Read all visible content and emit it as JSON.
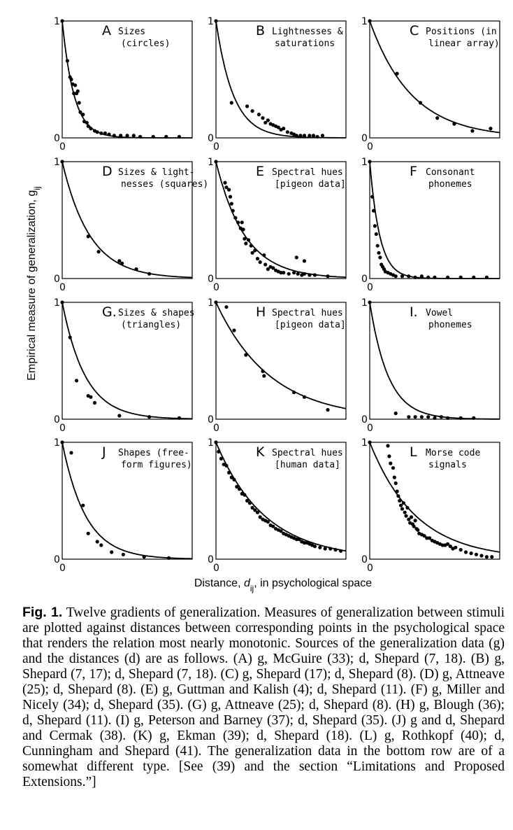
{
  "y_axis_title": "Empirical measure of generalization, g",
  "y_axis_sub": "ij",
  "x_axis_title_prefix": "Distance, ",
  "x_axis_var": "d",
  "x_axis_sub": "ij",
  "x_axis_title_suffix": ", in psychological space",
  "caption": {
    "fig_label": "Fig. 1.",
    "text": "Twelve gradients of generalization. Measures of generalization between stimuli are plotted against distances between corresponding points in the psychological space that renders the relation most nearly monotonic. Sources of the generalization data (g) and the distances (d) are as follows. (A) g, McGuire (33); d, Shepard (7, 18). (B) g, Shepard (7, 17); d, Shepard (7, 18). (C) g, Shepard (17); d, Shepard (8). (D) g, Attneave (25); d, Shepard (8). (E) g, Guttman and Kalish (4); d, Shepard (11). (F) g, Miller and Nicely (34); d, Shepard (35). (G) g, Attneave (25); d, Shepard (8). (H) g, Blough (36); d, Shepard (11). (I) g, Peterson and Barney (37); d, Shepard (35). (J) g and d, Shepard and Cermak (38). (K) g, Ekman (39); d, Shepard (18). (L) g, Rothkopf (40); d, Cunningham and Shepard (41). The generalization data in the bottom row are of a somewhat different type. [See (39) and the section “Limitations and Proposed Extensions.”]"
  },
  "chart_data": [
    {
      "id": "A",
      "type": "scatter",
      "letter": "A",
      "label": [
        "Sizes",
        "(circles)"
      ],
      "tick_y_top": "1",
      "tick_y_bottom": "0",
      "tick_x": "0",
      "ylim": [
        0,
        1
      ],
      "xlim": [
        0,
        1
      ],
      "curve_k": 11,
      "points": [
        [
          0.04,
          0.66
        ],
        [
          0.06,
          0.52
        ],
        [
          0.07,
          0.5
        ],
        [
          0.08,
          0.46
        ],
        [
          0.09,
          0.38
        ],
        [
          0.1,
          0.45
        ],
        [
          0.11,
          0.38
        ],
        [
          0.12,
          0.4
        ],
        [
          0.13,
          0.3
        ],
        [
          0.14,
          0.22
        ],
        [
          0.16,
          0.2
        ],
        [
          0.17,
          0.14
        ],
        [
          0.19,
          0.13
        ],
        [
          0.2,
          0.1
        ],
        [
          0.22,
          0.08
        ],
        [
          0.25,
          0.06
        ],
        [
          0.27,
          0.05
        ],
        [
          0.3,
          0.04
        ],
        [
          0.33,
          0.04
        ],
        [
          0.36,
          0.03
        ],
        [
          0.4,
          0.02
        ],
        [
          0.45,
          0.02
        ],
        [
          0.5,
          0.02
        ],
        [
          0.55,
          0.02
        ],
        [
          0.6,
          0.01
        ],
        [
          0.7,
          0.01
        ],
        [
          0.8,
          0.01
        ],
        [
          0.9,
          0.01
        ]
      ]
    },
    {
      "id": "B",
      "type": "scatter",
      "letter": "B",
      "label": [
        "Lightnesses &",
        "saturations"
      ],
      "tick_y_top": "1",
      "tick_y_bottom": "0",
      "tick_x": "0",
      "ylim": [
        0,
        1
      ],
      "xlim": [
        0,
        1
      ],
      "curve_k": 7.5,
      "points": [
        [
          0.12,
          0.3
        ],
        [
          0.24,
          0.27
        ],
        [
          0.28,
          0.23
        ],
        [
          0.33,
          0.2
        ],
        [
          0.36,
          0.17
        ],
        [
          0.38,
          0.13
        ],
        [
          0.4,
          0.15
        ],
        [
          0.42,
          0.12
        ],
        [
          0.44,
          0.11
        ],
        [
          0.46,
          0.1
        ],
        [
          0.48,
          0.09
        ],
        [
          0.5,
          0.07
        ],
        [
          0.52,
          0.08
        ],
        [
          0.55,
          0.05
        ],
        [
          0.58,
          0.04
        ],
        [
          0.6,
          0.03
        ],
        [
          0.62,
          0.02
        ],
        [
          0.65,
          0.02
        ],
        [
          0.68,
          0.02
        ],
        [
          0.72,
          0.02
        ],
        [
          0.75,
          0.02
        ],
        [
          0.78,
          0.01
        ],
        [
          0.82,
          0.02
        ]
      ]
    },
    {
      "id": "C",
      "type": "scatter",
      "letter": "C",
      "label": [
        "Positions (in",
        "linear array)"
      ],
      "tick_y_top": "1",
      "tick_y_bottom": "0",
      "tick_x": "0",
      "ylim": [
        0,
        1
      ],
      "xlim": [
        0,
        1
      ],
      "curve_k": 3.1,
      "points": [
        [
          0.21,
          0.55
        ],
        [
          0.39,
          0.3
        ],
        [
          0.52,
          0.17
        ],
        [
          0.65,
          0.12
        ],
        [
          0.79,
          0.06
        ],
        [
          0.93,
          0.08
        ]
      ]
    },
    {
      "id": "D",
      "type": "scatter",
      "letter": "D",
      "label": [
        "Sizes & light-",
        "nesses (squares)"
      ],
      "tick_y_top": "1",
      "tick_y_bottom": "0",
      "tick_x": "0",
      "ylim": [
        0,
        1
      ],
      "xlim": [
        0,
        1
      ],
      "curve_k": 4.7,
      "points": [
        [
          0.2,
          0.36
        ],
        [
          0.28,
          0.23
        ],
        [
          0.44,
          0.15
        ],
        [
          0.46,
          0.13
        ],
        [
          0.57,
          0.08
        ],
        [
          0.67,
          0.04
        ]
      ]
    },
    {
      "id": "E",
      "type": "scatter",
      "letter": "E",
      "label": [
        "Spectral hues",
        "[pigeon data]"
      ],
      "tick_y_top": "1",
      "tick_y_bottom": "0",
      "tick_x": "0",
      "ylim": [
        0,
        1
      ],
      "xlim": [
        0,
        1
      ],
      "curve_k": 4.5,
      "points": [
        [
          0.07,
          0.82
        ],
        [
          0.08,
          0.78
        ],
        [
          0.1,
          0.76
        ],
        [
          0.11,
          0.7
        ],
        [
          0.12,
          0.64
        ],
        [
          0.13,
          0.58
        ],
        [
          0.15,
          0.52
        ],
        [
          0.17,
          0.48
        ],
        [
          0.19,
          0.43
        ],
        [
          0.2,
          0.48
        ],
        [
          0.21,
          0.42
        ],
        [
          0.22,
          0.34
        ],
        [
          0.23,
          0.3
        ],
        [
          0.25,
          0.33
        ],
        [
          0.27,
          0.28
        ],
        [
          0.28,
          0.22
        ],
        [
          0.3,
          0.24
        ],
        [
          0.32,
          0.17
        ],
        [
          0.34,
          0.14
        ],
        [
          0.37,
          0.2
        ],
        [
          0.38,
          0.12
        ],
        [
          0.4,
          0.08
        ],
        [
          0.42,
          0.1
        ],
        [
          0.44,
          0.09
        ],
        [
          0.46,
          0.07
        ],
        [
          0.48,
          0.06
        ],
        [
          0.5,
          0.05
        ],
        [
          0.52,
          0.05
        ],
        [
          0.56,
          0.04
        ],
        [
          0.6,
          0.05
        ],
        [
          0.63,
          0.04
        ],
        [
          0.66,
          0.03
        ],
        [
          0.68,
          0.04
        ],
        [
          0.72,
          0.03
        ],
        [
          0.76,
          0.03
        ],
        [
          0.62,
          0.18
        ],
        [
          0.68,
          0.15
        ],
        [
          0.86,
          0.02
        ]
      ]
    },
    {
      "id": "F",
      "type": "scatter",
      "letter": "F",
      "label": [
        "Consonant",
        "phonemes"
      ],
      "tick_y_top": "1",
      "tick_y_bottom": "0",
      "tick_x": "0",
      "ylim": [
        0,
        1
      ],
      "xlim": [
        0,
        1
      ],
      "curve_k": 13,
      "points": [
        [
          0.02,
          0.7
        ],
        [
          0.03,
          0.58
        ],
        [
          0.04,
          0.45
        ],
        [
          0.05,
          0.38
        ],
        [
          0.06,
          0.28
        ],
        [
          0.07,
          0.22
        ],
        [
          0.08,
          0.18
        ],
        [
          0.09,
          0.12
        ],
        [
          0.1,
          0.1
        ],
        [
          0.11,
          0.08
        ],
        [
          0.12,
          0.06
        ],
        [
          0.14,
          0.05
        ],
        [
          0.16,
          0.04
        ],
        [
          0.18,
          0.03
        ],
        [
          0.2,
          0.02
        ],
        [
          0.25,
          0.02
        ],
        [
          0.3,
          0.02
        ],
        [
          0.35,
          0.01
        ],
        [
          0.4,
          0.02
        ],
        [
          0.45,
          0.01
        ],
        [
          0.5,
          0.01
        ],
        [
          0.6,
          0.01
        ],
        [
          0.7,
          0.01
        ],
        [
          0.8,
          0.01
        ],
        [
          0.9,
          0.01
        ]
      ]
    },
    {
      "id": "G",
      "type": "scatter",
      "letter": "G.",
      "label": [
        "Sizes & shapes",
        "(triangles)"
      ],
      "tick_y_top": "1",
      "tick_y_bottom": "0",
      "tick_x": "0",
      "ylim": [
        0,
        1
      ],
      "xlim": [
        0,
        1
      ],
      "curve_k": 5.6,
      "points": [
        [
          0.06,
          0.7
        ],
        [
          0.11,
          0.33
        ],
        [
          0.2,
          0.2
        ],
        [
          0.22,
          0.19
        ],
        [
          0.25,
          0.14
        ],
        [
          0.44,
          0.03
        ],
        [
          0.67,
          0.02
        ],
        [
          0.9,
          0.01
        ]
      ]
    },
    {
      "id": "H",
      "type": "scatter",
      "letter": "H",
      "label": [
        "Spectral hues",
        "[pigeon data]"
      ],
      "tick_y_top": "1",
      "tick_y_bottom": "0",
      "tick_x": "0",
      "ylim": [
        0,
        1
      ],
      "xlim": [
        0,
        1
      ],
      "curve_k": 2.4,
      "points": [
        [
          0.08,
          0.96
        ],
        [
          0.14,
          0.76
        ],
        [
          0.23,
          0.55
        ],
        [
          0.36,
          0.41
        ],
        [
          0.37,
          0.37
        ],
        [
          0.6,
          0.23
        ],
        [
          0.68,
          0.19
        ],
        [
          0.86,
          0.08
        ]
      ]
    },
    {
      "id": "I",
      "type": "scatter",
      "letter": "I.",
      "label": [
        "Vowel",
        "phonemes"
      ],
      "tick_y_top": "1",
      "tick_y_bottom": "0",
      "tick_x": "0",
      "ylim": [
        0,
        1
      ],
      "xlim": [
        0,
        1
      ],
      "curve_k": 7,
      "points": [
        [
          0.2,
          0.05
        ],
        [
          0.3,
          0.02
        ],
        [
          0.35,
          0.02
        ],
        [
          0.4,
          0.02
        ],
        [
          0.45,
          0.02
        ],
        [
          0.5,
          0.01
        ],
        [
          0.55,
          0.02
        ],
        [
          0.6,
          0.01
        ],
        [
          0.7,
          0.01
        ],
        [
          0.8,
          0.01
        ]
      ]
    },
    {
      "id": "J",
      "type": "scatter",
      "letter": "J",
      "label": [
        "Shapes (free-",
        "form figures)"
      ],
      "tick_y_top": "1",
      "tick_y_bottom": "0",
      "tick_x": "0",
      "ylim": [
        0,
        1
      ],
      "xlim": [
        0,
        1
      ],
      "curve_k": 5.5,
      "points": [
        [
          0.07,
          0.91
        ],
        [
          0.16,
          0.46
        ],
        [
          0.2,
          0.22
        ],
        [
          0.27,
          0.15
        ],
        [
          0.3,
          0.12
        ],
        [
          0.38,
          0.06
        ],
        [
          0.47,
          0.04
        ],
        [
          0.63,
          0.02
        ],
        [
          0.82,
          0.01
        ]
      ]
    },
    {
      "id": "K",
      "type": "scatter",
      "letter": "K",
      "label": [
        "Spectral hues",
        "[human data]"
      ],
      "tick_y_top": "1",
      "tick_y_bottom": "0",
      "tick_x": "0",
      "ylim": [
        0,
        1
      ],
      "xlim": [
        0,
        1
      ],
      "curve_k": 2.65,
      "points": [
        [
          0.02,
          0.92
        ],
        [
          0.04,
          0.86
        ],
        [
          0.06,
          0.81
        ],
        [
          0.08,
          0.8
        ],
        [
          0.1,
          0.74
        ],
        [
          0.12,
          0.7
        ],
        [
          0.14,
          0.68
        ],
        [
          0.16,
          0.62
        ],
        [
          0.18,
          0.6
        ],
        [
          0.2,
          0.56
        ],
        [
          0.22,
          0.55
        ],
        [
          0.24,
          0.5
        ],
        [
          0.26,
          0.48
        ],
        [
          0.28,
          0.44
        ],
        [
          0.3,
          0.42
        ],
        [
          0.32,
          0.4
        ],
        [
          0.34,
          0.36
        ],
        [
          0.36,
          0.34
        ],
        [
          0.38,
          0.33
        ],
        [
          0.4,
          0.32
        ],
        [
          0.42,
          0.29
        ],
        [
          0.44,
          0.28
        ],
        [
          0.46,
          0.26
        ],
        [
          0.48,
          0.25
        ],
        [
          0.5,
          0.24
        ],
        [
          0.52,
          0.22
        ],
        [
          0.54,
          0.21
        ],
        [
          0.56,
          0.2
        ],
        [
          0.58,
          0.19
        ],
        [
          0.6,
          0.18
        ],
        [
          0.62,
          0.17
        ],
        [
          0.64,
          0.17
        ],
        [
          0.66,
          0.15
        ],
        [
          0.68,
          0.14
        ],
        [
          0.7,
          0.14
        ],
        [
          0.72,
          0.13
        ],
        [
          0.74,
          0.12
        ],
        [
          0.76,
          0.11
        ],
        [
          0.8,
          0.1
        ],
        [
          0.84,
          0.09
        ],
        [
          0.88,
          0.09
        ],
        [
          0.92,
          0.08
        ],
        [
          0.96,
          0.07
        ]
      ]
    },
    {
      "id": "L",
      "type": "scatter",
      "letter": "L",
      "label": [
        "Morse code",
        "signals"
      ],
      "tick_y_top": "1",
      "tick_y_bottom": "0",
      "tick_x": "0",
      "ylim": [
        0,
        1
      ],
      "xlim": [
        0,
        1
      ],
      "curve_k": 2.8,
      "points": [
        [
          0.14,
          0.97
        ],
        [
          0.15,
          0.88
        ],
        [
          0.16,
          0.82
        ],
        [
          0.18,
          0.78
        ],
        [
          0.19,
          0.7
        ],
        [
          0.2,
          0.65
        ],
        [
          0.21,
          0.58
        ],
        [
          0.22,
          0.54
        ],
        [
          0.23,
          0.5
        ],
        [
          0.24,
          0.46
        ],
        [
          0.25,
          0.43
        ],
        [
          0.26,
          0.48
        ],
        [
          0.27,
          0.4
        ],
        [
          0.28,
          0.37
        ],
        [
          0.29,
          0.44
        ],
        [
          0.3,
          0.34
        ],
        [
          0.31,
          0.31
        ],
        [
          0.32,
          0.36
        ],
        [
          0.33,
          0.3
        ],
        [
          0.34,
          0.28
        ],
        [
          0.35,
          0.33
        ],
        [
          0.36,
          0.26
        ],
        [
          0.37,
          0.25
        ],
        [
          0.38,
          0.22
        ],
        [
          0.4,
          0.21
        ],
        [
          0.42,
          0.2
        ],
        [
          0.44,
          0.18
        ],
        [
          0.46,
          0.18
        ],
        [
          0.48,
          0.16
        ],
        [
          0.5,
          0.15
        ],
        [
          0.52,
          0.14
        ],
        [
          0.54,
          0.13
        ],
        [
          0.56,
          0.12
        ],
        [
          0.58,
          0.12
        ],
        [
          0.6,
          0.13
        ],
        [
          0.62,
          0.11
        ],
        [
          0.64,
          0.09
        ],
        [
          0.66,
          0.1
        ],
        [
          0.7,
          0.08
        ],
        [
          0.74,
          0.06
        ],
        [
          0.78,
          0.05
        ],
        [
          0.82,
          0.04
        ],
        [
          0.86,
          0.03
        ],
        [
          0.9,
          0.02
        ],
        [
          0.94,
          0.02
        ]
      ]
    }
  ]
}
